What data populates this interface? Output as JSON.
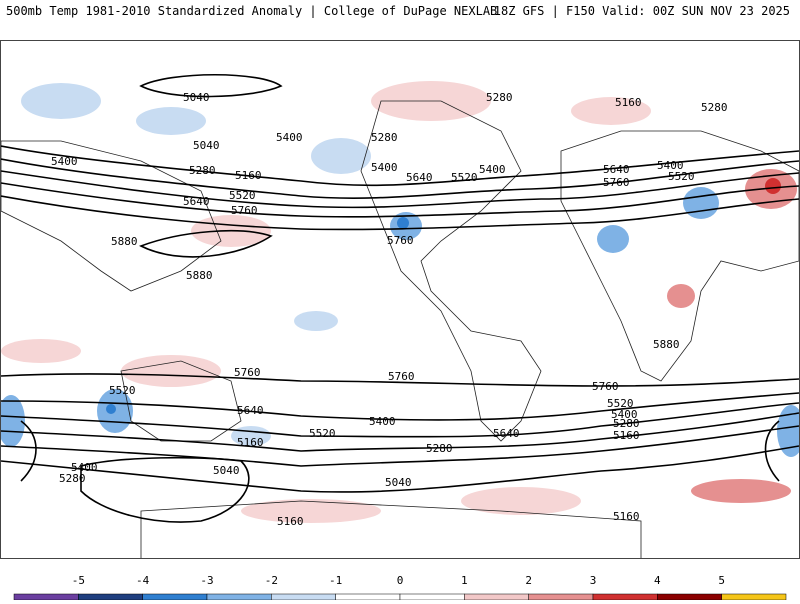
{
  "header": {
    "left": "500mb Temp 1981-2010 Standardized Anomaly | College of DuPage NEXLAB",
    "right": "18Z GFS | F150 Valid: 00Z SUN NOV 23 2025"
  },
  "contour_labels": [
    "5040",
    "5040",
    "5400",
    "5400",
    "5280",
    "5160",
    "5520",
    "5640",
    "5760",
    "5880",
    "5880",
    "5400",
    "5280",
    "5640",
    "5520",
    "5400",
    "5760",
    "5280",
    "5160",
    "5280",
    "5640",
    "5760",
    "5400",
    "5520",
    "5880",
    "5760",
    "5760",
    "5760",
    "5520",
    "5640",
    "5520",
    "5400",
    "5280",
    "5160",
    "5400",
    "5280",
    "5040",
    "5040",
    "5160",
    "5160",
    "5640",
    "5520",
    "5400",
    "5280",
    "5160",
    "5160"
  ],
  "colorbar": {
    "ticks": [
      "-5",
      "-4",
      "-3",
      "-2",
      "-1",
      "0",
      "1",
      "2",
      "3",
      "4",
      "5"
    ],
    "colors": [
      "#6b3fa0",
      "#1f3f7f",
      "#2f7fd0",
      "#7fb2e5",
      "#c8dcf2",
      "#ffffff",
      "#ffffff",
      "#f2c8c8",
      "#e59090",
      "#d03030",
      "#8b0000",
      "#f5c518"
    ]
  }
}
